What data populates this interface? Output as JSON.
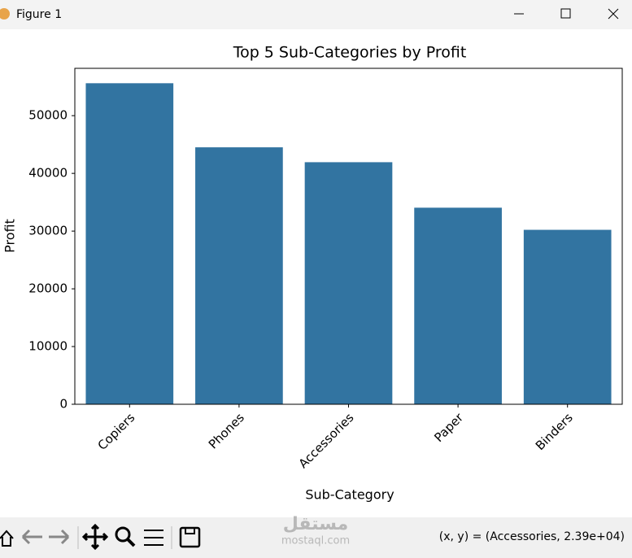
{
  "window": {
    "title": "Figure 1",
    "status": "(x, y) = (Accessories, 2.39e+04)",
    "watermark": "مستقل",
    "watermark_url": "mostaql.com"
  },
  "chart_data": {
    "type": "bar",
    "title": "Top 5 Sub-Categories by Profit",
    "x_label": "Sub-Category",
    "y_label": "Profit",
    "categories": [
      "Copiers",
      "Phones",
      "Accessories",
      "Paper",
      "Binders"
    ],
    "values": [
      55618,
      44516,
      41937,
      34054,
      30222
    ],
    "color": "#3274a1",
    "ylim": [
      0,
      58200
    ],
    "yticks": [
      0,
      10000,
      20000,
      30000,
      40000,
      50000
    ],
    "grid": false
  }
}
